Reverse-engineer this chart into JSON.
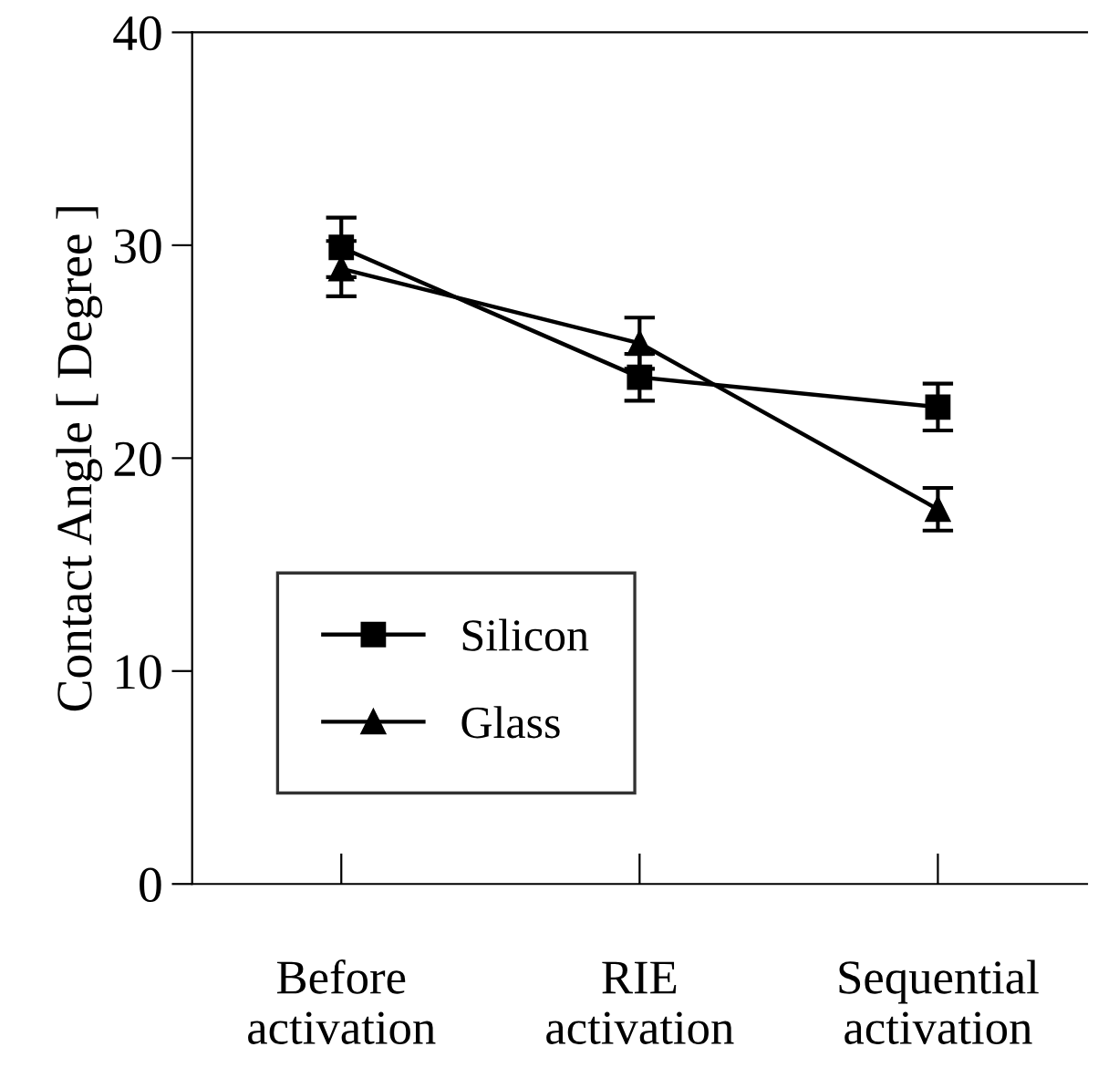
{
  "chart_data": {
    "type": "line",
    "ylabel": "Contact Angle [ Degree ]",
    "categories": [
      "Before\nactivation",
      "RIE\nactivation",
      "Sequential\nactivation"
    ],
    "series": [
      {
        "name": "Silicon",
        "color": "#000000",
        "marker": "square",
        "values": [
          29.9,
          23.8,
          22.4
        ],
        "errors": [
          1.4,
          1.1,
          1.1
        ]
      },
      {
        "name": "Glass",
        "color": "#000000",
        "marker": "triangle",
        "values": [
          28.9,
          25.4,
          17.6
        ],
        "errors": [
          1.3,
          1.2,
          1.0
        ]
      }
    ],
    "ylim": [
      0,
      40
    ],
    "yticks": [
      0,
      10,
      20,
      30,
      40
    ],
    "grid": false,
    "legend": "bottom left",
    "line_style": "solid"
  }
}
